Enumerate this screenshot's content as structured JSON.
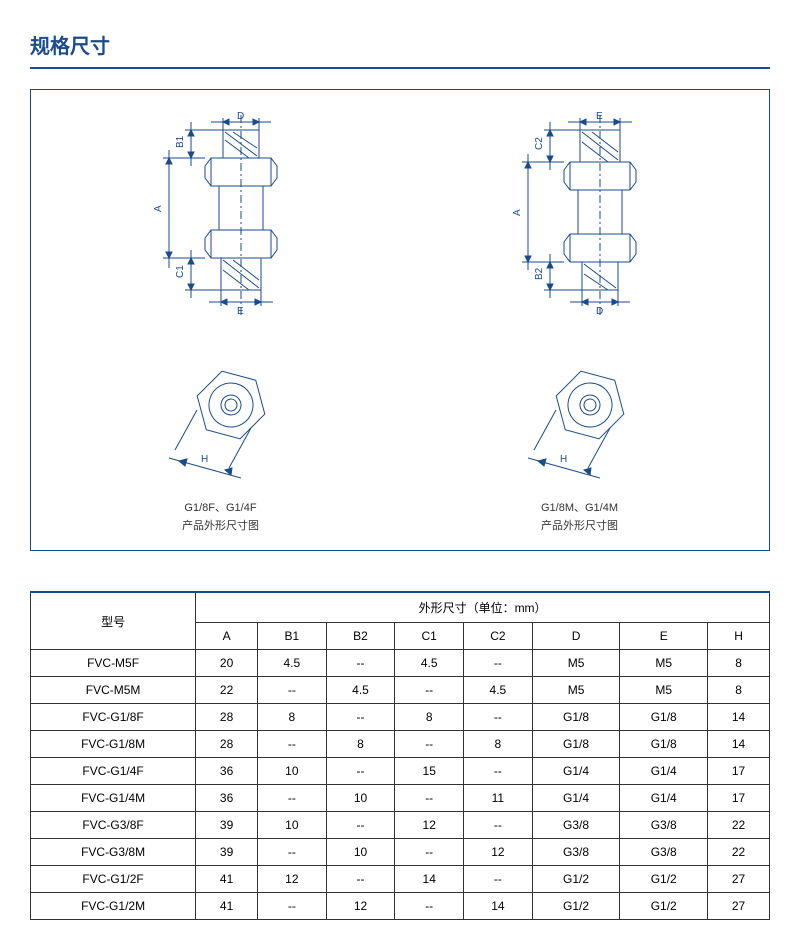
{
  "title": "规格尺寸",
  "diagrams": {
    "stroke": "#1a4b8c",
    "left_caption_1": "G1/8F、G1/4F",
    "left_caption_2": "产品外形尺寸图",
    "right_caption_1": "G1/8M、G1/4M",
    "right_caption_2": "产品外形尺寸图",
    "labels": {
      "A": "A",
      "B1": "B1",
      "B2": "B2",
      "C1": "C1",
      "C2": "C2",
      "D": "D",
      "E": "E",
      "H": "H"
    }
  },
  "table": {
    "header_model": "型号",
    "header_dims": "外形尺寸（单位：mm）",
    "columns": [
      "A",
      "B1",
      "B2",
      "C1",
      "C2",
      "D",
      "E",
      "H"
    ],
    "rows": [
      {
        "model": "FVC-M5F",
        "vals": [
          "20",
          "4.5",
          "--",
          "4.5",
          "--",
          "M5",
          "M5",
          "8"
        ]
      },
      {
        "model": "FVC-M5M",
        "vals": [
          "22",
          "--",
          "4.5",
          "--",
          "4.5",
          "M5",
          "M5",
          "8"
        ]
      },
      {
        "model": "FVC-G1/8F",
        "vals": [
          "28",
          "8",
          "--",
          "8",
          "--",
          "G1/8",
          "G1/8",
          "14"
        ]
      },
      {
        "model": "FVC-G1/8M",
        "vals": [
          "28",
          "--",
          "8",
          "--",
          "8",
          "G1/8",
          "G1/8",
          "14"
        ]
      },
      {
        "model": "FVC-G1/4F",
        "vals": [
          "36",
          "10",
          "--",
          "15",
          "--",
          "G1/4",
          "G1/4",
          "17"
        ]
      },
      {
        "model": "FVC-G1/4M",
        "vals": [
          "36",
          "--",
          "10",
          "--",
          "11",
          "G1/4",
          "G1/4",
          "17"
        ]
      },
      {
        "model": "FVC-G3/8F",
        "vals": [
          "39",
          "10",
          "--",
          "12",
          "--",
          "G3/8",
          "G3/8",
          "22"
        ]
      },
      {
        "model": "FVC-G3/8M",
        "vals": [
          "39",
          "--",
          "10",
          "--",
          "12",
          "G3/8",
          "G3/8",
          "22"
        ]
      },
      {
        "model": "FVC-G1/2F",
        "vals": [
          "41",
          "12",
          "--",
          "14",
          "--",
          "G1/2",
          "G1/2",
          "27"
        ]
      },
      {
        "model": "FVC-G1/2M",
        "vals": [
          "41",
          "--",
          "12",
          "--",
          "14",
          "G1/2",
          "G1/2",
          "27"
        ]
      }
    ]
  }
}
